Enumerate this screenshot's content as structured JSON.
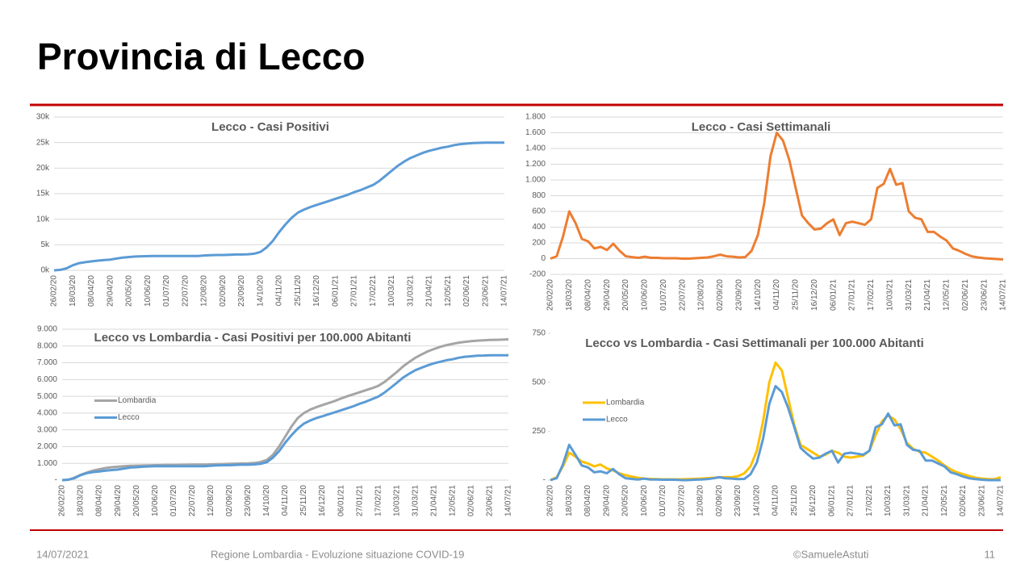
{
  "title": "Provincia di Lecco",
  "footer": {
    "date": "14/07/2021",
    "source": "Regione Lombardia - Evoluzione situazione COVID-19",
    "author": "©SamueleAstuti",
    "page": "11"
  },
  "chart_data": [
    {
      "type": "line",
      "title": "Lecco - Casi Positivi",
      "color": "#5b9bd5",
      "grid": true,
      "categories": [
        "26/02/20",
        null,
        null,
        "18/03/20",
        null,
        null,
        "08/04/20",
        null,
        null,
        "29/04/20",
        null,
        null,
        "20/05/20",
        null,
        null,
        "10/06/20",
        null,
        null,
        "01/07/20",
        null,
        null,
        "22/07/20",
        null,
        null,
        "12/08/20",
        null,
        null,
        "02/09/20",
        null,
        null,
        "23/09/20",
        null,
        null,
        "14/10/20",
        null,
        null,
        "04/11/20",
        null,
        null,
        "25/11/20",
        null,
        null,
        "16/12/20",
        null,
        null,
        "06/01/21",
        null,
        null,
        "27/01/21",
        null,
        null,
        "17/02/21",
        null,
        null,
        "10/03/21",
        null,
        null,
        "31/03/21",
        null,
        null,
        "21/04/21",
        null,
        null,
        "12/05/21",
        null,
        null,
        "02/06/21",
        null,
        null,
        "23/06/21",
        null,
        null,
        "14/07/21"
      ],
      "values": [
        0,
        100,
        400,
        1000,
        1400,
        1600,
        1750,
        1900,
        2000,
        2100,
        2300,
        2500,
        2600,
        2700,
        2750,
        2780,
        2800,
        2800,
        2800,
        2800,
        2800,
        2800,
        2800,
        2800,
        2900,
        2950,
        3000,
        3000,
        3050,
        3100,
        3100,
        3150,
        3250,
        3600,
        4500,
        5800,
        7500,
        9000,
        10300,
        11300,
        11900,
        12400,
        12800,
        13200,
        13600,
        14000,
        14400,
        14800,
        15300,
        15700,
        16200,
        16700,
        17500,
        18500,
        19500,
        20500,
        21300,
        22000,
        22500,
        23000,
        23400,
        23700,
        24000,
        24200,
        24500,
        24700,
        24800,
        24900,
        24950,
        25000,
        25000,
        25000,
        25000
      ],
      "ylim": [
        0,
        30000
      ],
      "yticks": [
        {
          "value": 0,
          "label": "0k"
        },
        {
          "value": 5000,
          "label": "5k"
        },
        {
          "value": 10000,
          "label": "10k"
        },
        {
          "value": 15000,
          "label": "15k"
        },
        {
          "value": 20000,
          "label": "20k"
        },
        {
          "value": 25000,
          "label": "25k"
        },
        {
          "value": 30000,
          "label": "30k"
        }
      ]
    },
    {
      "type": "line",
      "title": "Lecco - Casi Settimanali",
      "color": "#ed7d31",
      "grid": true,
      "categories": [
        "26/02/20",
        null,
        null,
        "18/03/20",
        null,
        null,
        "08/04/20",
        null,
        null,
        "29/04/20",
        null,
        null,
        "20/05/20",
        null,
        null,
        "10/06/20",
        null,
        null,
        "01/07/20",
        null,
        null,
        "22/07/20",
        null,
        null,
        "12/08/20",
        null,
        null,
        "02/09/20",
        null,
        null,
        "23/09/20",
        null,
        null,
        "14/10/20",
        null,
        null,
        "04/11/20",
        null,
        null,
        "25/11/20",
        null,
        null,
        "16/12/20",
        null,
        null,
        "06/01/21",
        null,
        null,
        "27/01/21",
        null,
        null,
        "17/02/21",
        null,
        null,
        "10/03/21",
        null,
        null,
        "31/03/21",
        null,
        null,
        "21/04/21",
        null,
        null,
        "12/05/21",
        null,
        null,
        "02/06/21",
        null,
        null,
        "23/06/21",
        null,
        null,
        "14/07/21"
      ],
      "values": [
        0,
        30,
        280,
        600,
        450,
        250,
        220,
        130,
        150,
        110,
        190,
        100,
        30,
        20,
        10,
        25,
        10,
        10,
        5,
        5,
        5,
        0,
        0,
        5,
        10,
        15,
        30,
        50,
        30,
        25,
        15,
        20,
        100,
        300,
        700,
        1300,
        1600,
        1500,
        1250,
        900,
        550,
        450,
        370,
        380,
        450,
        500,
        300,
        450,
        470,
        450,
        430,
        500,
        900,
        950,
        1140,
        940,
        960,
        600,
        520,
        500,
        340,
        340,
        280,
        230,
        130,
        100,
        60,
        30,
        15,
        5,
        0,
        -5,
        -10
      ],
      "ylim": [
        -200,
        1800
      ],
      "yticks": [
        -200,
        0,
        200,
        400,
        600,
        800,
        {
          "value": 1000,
          "label": "1.000"
        },
        {
          "value": 1200,
          "label": "1.200"
        },
        {
          "value": 1400,
          "label": "1.400"
        },
        {
          "value": 1600,
          "label": "1.600"
        },
        {
          "value": 1800,
          "label": "1.800"
        }
      ]
    },
    {
      "type": "line",
      "title": "Lecco vs Lombardia - Casi Positivi per 100.000 Abitanti",
      "grid": true,
      "legend": "left",
      "categories": [
        "26/02/20",
        null,
        null,
        "18/03/20",
        null,
        null,
        "08/04/20",
        null,
        null,
        "29/04/20",
        null,
        null,
        "20/05/20",
        null,
        null,
        "10/06/20",
        null,
        null,
        "01/07/20",
        null,
        null,
        "22/07/20",
        null,
        null,
        "12/08/20",
        null,
        null,
        "02/09/20",
        null,
        null,
        "23/09/20",
        null,
        null,
        "14/10/20",
        null,
        null,
        "04/11/20",
        null,
        null,
        "25/11/20",
        null,
        null,
        "16/12/20",
        null,
        null,
        "06/01/21",
        null,
        null,
        "27/01/21",
        null,
        null,
        "17/02/21",
        null,
        null,
        "10/03/21",
        null,
        null,
        "31/03/21",
        null,
        null,
        "21/04/21",
        null,
        null,
        "12/05/21",
        null,
        null,
        "02/06/21",
        null,
        null,
        "23/06/21",
        null,
        null,
        "14/07/21"
      ],
      "series": [
        {
          "name": "Lombardia",
          "color": "#a5a5a5",
          "values": [
            0,
            20,
            150,
            320,
            450,
            570,
            650,
            720,
            770,
            800,
            830,
            850,
            860,
            870,
            880,
            890,
            895,
            900,
            905,
            910,
            915,
            920,
            925,
            930,
            940,
            950,
            960,
            970,
            980,
            990,
            1000,
            1020,
            1080,
            1200,
            1500,
            2000,
            2600,
            3200,
            3700,
            4000,
            4200,
            4350,
            4480,
            4600,
            4720,
            4870,
            5000,
            5120,
            5240,
            5360,
            5480,
            5620,
            5850,
            6150,
            6450,
            6780,
            7050,
            7300,
            7500,
            7680,
            7820,
            7950,
            8050,
            8130,
            8200,
            8250,
            8290,
            8320,
            8340,
            8360,
            8370,
            8380,
            8400
          ]
        },
        {
          "name": "Lecco",
          "color": "#5b9bd5",
          "values": [
            0,
            30,
            120,
            300,
            420,
            480,
            520,
            570,
            600,
            630,
            690,
            750,
            770,
            800,
            820,
            830,
            830,
            830,
            830,
            830,
            830,
            830,
            830,
            830,
            860,
            880,
            890,
            890,
            910,
            920,
            920,
            940,
            970,
            1070,
            1340,
            1730,
            2240,
            2680,
            3070,
            3370,
            3550,
            3700,
            3810,
            3930,
            4050,
            4170,
            4290,
            4410,
            4560,
            4680,
            4830,
            4980,
            5220,
            5510,
            5810,
            6110,
            6350,
            6560,
            6710,
            6850,
            6970,
            7060,
            7150,
            7210,
            7300,
            7360,
            7390,
            7420,
            7430,
            7450,
            7450,
            7450,
            7450
          ]
        }
      ],
      "ylim": [
        0,
        9000
      ],
      "yticks": [
        {
          "value": 0,
          "label": "-"
        },
        {
          "value": 1000,
          "label": "1.000"
        },
        {
          "value": 2000,
          "label": "2.000"
        },
        {
          "value": 3000,
          "label": "3.000"
        },
        {
          "value": 4000,
          "label": "4.000"
        },
        {
          "value": 5000,
          "label": "5.000"
        },
        {
          "value": 6000,
          "label": "6.000"
        },
        {
          "value": 7000,
          "label": "7.000"
        },
        {
          "value": 8000,
          "label": "8.000"
        },
        {
          "value": 9000,
          "label": "9.000"
        }
      ]
    },
    {
      "type": "line",
      "title": "Lecco vs Lombardia - Casi Settimanali per 100.000 Abitanti",
      "grid": false,
      "legend": "left",
      "categories": [
        "26/02/20",
        null,
        null,
        "18/03/20",
        null,
        null,
        "08/04/20",
        null,
        null,
        "29/04/20",
        null,
        null,
        "20/05/20",
        null,
        null,
        "10/06/20",
        null,
        null,
        "01/07/20",
        null,
        null,
        "22/07/20",
        null,
        null,
        "12/08/20",
        null,
        null,
        "02/09/20",
        null,
        null,
        "23/09/20",
        null,
        null,
        "14/10/20",
        null,
        null,
        "04/11/20",
        null,
        null,
        "25/11/20",
        null,
        null,
        "16/12/20",
        null,
        null,
        "06/01/21",
        null,
        null,
        "27/01/21",
        null,
        null,
        "17/02/21",
        null,
        null,
        "10/03/21",
        null,
        null,
        "31/03/21",
        null,
        null,
        "21/04/21",
        null,
        null,
        "12/05/21",
        null,
        null,
        "02/06/21",
        null,
        null,
        "23/06/21",
        null,
        null,
        "14/07/21"
      ],
      "series": [
        {
          "name": "Lombardia",
          "color": "#ffc000",
          "values": [
            0,
            15,
            70,
            140,
            120,
            95,
            85,
            70,
            80,
            60,
            50,
            35,
            25,
            18,
            12,
            8,
            6,
            5,
            4,
            4,
            4,
            4,
            5,
            6,
            8,
            10,
            12,
            14,
            15,
            15,
            20,
            35,
            70,
            150,
            300,
            500,
            600,
            560,
            420,
            280,
            180,
            160,
            140,
            120,
            130,
            150,
            140,
            120,
            115,
            120,
            125,
            150,
            230,
            300,
            330,
            310,
            260,
            190,
            160,
            145,
            140,
            120,
            100,
            75,
            55,
            40,
            30,
            20,
            12,
            8,
            5,
            5,
            15
          ]
        },
        {
          "name": "Lecco",
          "color": "#5b9bd5",
          "values": [
            0,
            10,
            80,
            180,
            130,
            75,
            65,
            40,
            45,
            35,
            57,
            30,
            10,
            6,
            3,
            8,
            3,
            3,
            2,
            2,
            2,
            0,
            0,
            2,
            3,
            5,
            9,
            15,
            9,
            8,
            5,
            6,
            30,
            90,
            210,
            390,
            480,
            450,
            370,
            270,
            165,
            135,
            110,
            115,
            135,
            150,
            90,
            135,
            140,
            135,
            130,
            150,
            270,
            285,
            340,
            280,
            285,
            180,
            155,
            150,
            100,
            100,
            85,
            70,
            40,
            30,
            18,
            9,
            5,
            2,
            0,
            0,
            0
          ]
        }
      ],
      "ylim": [
        0,
        750
      ],
      "yticks": [
        {
          "value": 0,
          "label": "-"
        },
        250,
        500,
        750
      ]
    }
  ]
}
